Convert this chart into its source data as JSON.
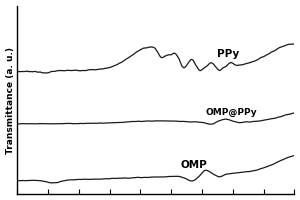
{
  "ylabel": "Transmittance (a. u.)",
  "background_color": "#ffffff",
  "line_color": "#1a1a1a",
  "labels": [
    "PPy",
    "OMP@PPy",
    "OMP"
  ],
  "offsets": [
    0.58,
    0.3,
    0.0
  ],
  "n_points": 600,
  "tick_count": 9,
  "figsize": [
    3.0,
    2.0
  ],
  "dpi": 100
}
